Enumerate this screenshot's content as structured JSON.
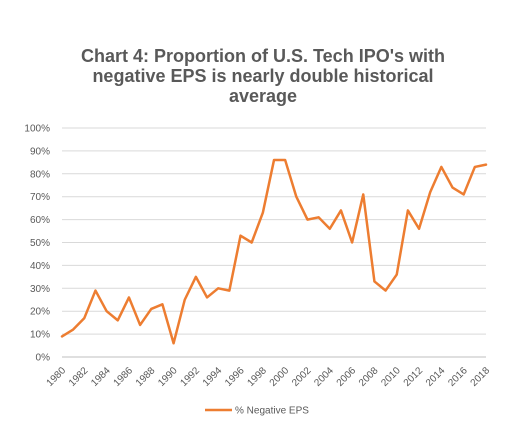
{
  "chart_data": {
    "type": "line",
    "title_lines": [
      "Chart 4: Proportion of U.S. Tech IPO's with",
      "negative EPS is nearly double historical",
      "average"
    ],
    "xlabel": "",
    "ylabel": "",
    "x": [
      1980,
      1981,
      1982,
      1983,
      1984,
      1985,
      1986,
      1987,
      1988,
      1989,
      1990,
      1991,
      1992,
      1993,
      1994,
      1995,
      1996,
      1997,
      1998,
      1999,
      2000,
      2001,
      2002,
      2003,
      2004,
      2005,
      2006,
      2007,
      2008,
      2009,
      2010,
      2011,
      2012,
      2013,
      2014,
      2015,
      2016,
      2017,
      2018
    ],
    "x_tick_labels": [
      "1980",
      "1982",
      "1984",
      "1986",
      "1988",
      "1990",
      "1992",
      "1994",
      "1996",
      "1998",
      "2000",
      "2002",
      "2004",
      "2006",
      "2008",
      "2010",
      "2012",
      "2014",
      "2016",
      "2018"
    ],
    "y_tick_labels": [
      "0%",
      "10%",
      "20%",
      "30%",
      "40%",
      "50%",
      "60%",
      "70%",
      "80%",
      "90%",
      "100%"
    ],
    "ylim": [
      0,
      100
    ],
    "grid": true,
    "legend_position": "bottom",
    "series": [
      {
        "name": "% Negative EPS",
        "color": "#ED7D31",
        "values": [
          9,
          12,
          17,
          29,
          20,
          16,
          26,
          14,
          21,
          23,
          6,
          25,
          35,
          26,
          30,
          29,
          53,
          50,
          63,
          86,
          86,
          70,
          60,
          61,
          56,
          64,
          50,
          71,
          33,
          29,
          36,
          64,
          56,
          72,
          83,
          74,
          71,
          83,
          84
        ]
      }
    ]
  }
}
